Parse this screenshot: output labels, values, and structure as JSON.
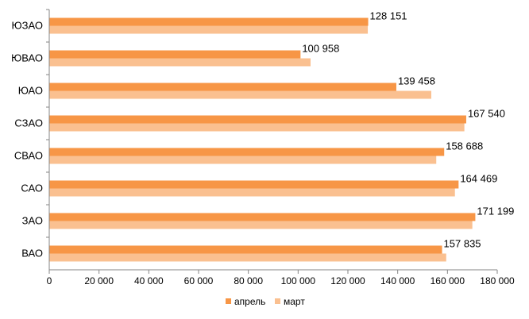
{
  "chart_data": {
    "type": "bar",
    "orientation": "horizontal",
    "categories": [
      "ЮЗАО",
      "ЮВАО",
      "ЮАО",
      "СЗАО",
      "СВАО",
      "САО",
      "ЗАО",
      "ВАО"
    ],
    "series": [
      {
        "name": "апрель",
        "color": "#f79646",
        "values": [
          128151,
          100958,
          139458,
          167540,
          158688,
          164469,
          171199,
          157835
        ],
        "data_labels": [
          "128 151",
          "100 958",
          "139 458",
          "167 540",
          "158 688",
          "164 469",
          "171 199",
          "157 835"
        ]
      },
      {
        "name": "март",
        "color": "#fac090",
        "values": [
          128000,
          105000,
          153500,
          166800,
          155500,
          163000,
          170000,
          159500
        ]
      }
    ],
    "xlim": [
      0,
      180000
    ],
    "xticks": [
      "0",
      "20 000",
      "40 000",
      "60 000",
      "80 000",
      "100 000",
      "120 000",
      "140 000",
      "160 000",
      "180 000"
    ],
    "title": "",
    "xlabel": "",
    "ylabel": "",
    "grid": false,
    "legend_position": "bottom"
  }
}
